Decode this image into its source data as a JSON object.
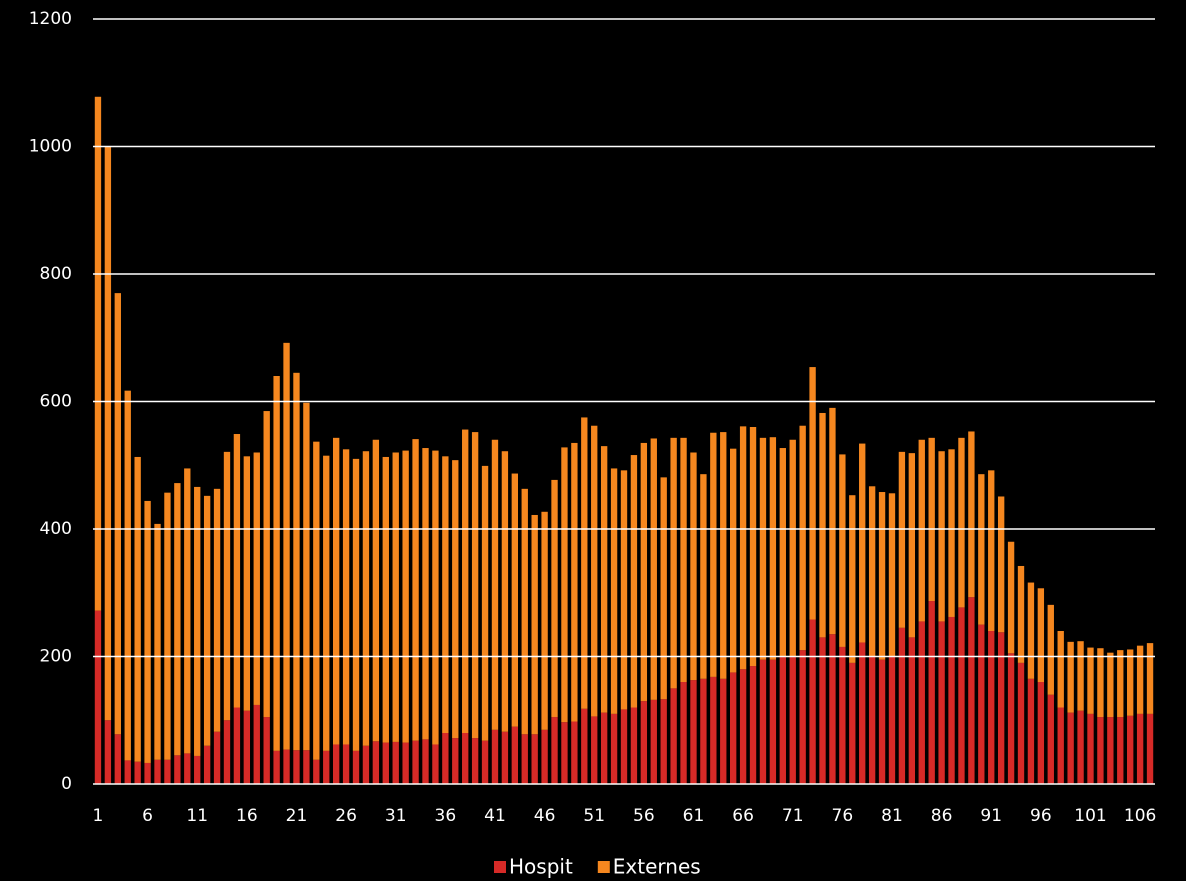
{
  "chart_data": {
    "type": "stacked-bar",
    "categories": [
      "1",
      null,
      null,
      null,
      null,
      "6",
      null,
      null,
      null,
      null,
      "11",
      null,
      null,
      null,
      null,
      "16",
      null,
      null,
      null,
      null,
      "21",
      null,
      null,
      null,
      null,
      "26",
      null,
      null,
      null,
      null,
      "31",
      null,
      null,
      null,
      null,
      "36",
      null,
      null,
      null,
      null,
      "41",
      null,
      null,
      null,
      null,
      "46",
      null,
      null,
      null,
      null,
      "51",
      null,
      null,
      null,
      null,
      "56",
      null,
      null,
      null,
      null,
      "61",
      null,
      null,
      null,
      null,
      "66",
      null,
      null,
      null,
      null,
      "71",
      null,
      null,
      null,
      null,
      "76",
      null,
      null,
      null,
      null,
      "81",
      null,
      null,
      null,
      null,
      "86",
      null,
      null,
      null,
      null,
      "91",
      null,
      null,
      null,
      null,
      "96",
      null,
      null,
      null,
      null,
      "101",
      null,
      null,
      null,
      null,
      "106",
      null
    ],
    "series": [
      {
        "name": "Hospit",
        "color": "#d62a27",
        "values": [
          272,
          100,
          78,
          37,
          35,
          33,
          38,
          38,
          45,
          48,
          44,
          60,
          82,
          100,
          120,
          115,
          124,
          105,
          52,
          54,
          53,
          53,
          38,
          52,
          62,
          62,
          52,
          60,
          67,
          65,
          66,
          65,
          68,
          70,
          62,
          80,
          72,
          80,
          72,
          68,
          85,
          82,
          90,
          78,
          78,
          85,
          105,
          97,
          98,
          118,
          106,
          112,
          110,
          117,
          120,
          130,
          132,
          133,
          150,
          160,
          163,
          165,
          168,
          165,
          175,
          180,
          185,
          195,
          195,
          200,
          200,
          210,
          258,
          230,
          235,
          215,
          190,
          222,
          200,
          195,
          200,
          245,
          230,
          255,
          287,
          255,
          262,
          277,
          293,
          250,
          240,
          238,
          205,
          190,
          165,
          160,
          140,
          120,
          112,
          115,
          110,
          105,
          105,
          105,
          107,
          110,
          110
        ]
      },
      {
        "name": "Externes",
        "color": "#f5871f",
        "values": [
          806,
          900,
          692,
          580,
          478,
          411,
          370,
          419,
          427,
          447,
          422,
          392,
          381,
          421,
          429,
          399,
          396,
          480,
          588,
          638,
          592,
          545,
          499,
          463,
          481,
          463,
          458,
          462,
          473,
          448,
          454,
          458,
          473,
          457,
          461,
          434,
          436,
          476,
          480,
          431,
          455,
          440,
          397,
          385,
          344,
          342,
          372,
          431,
          437,
          457,
          456,
          418,
          385,
          375,
          396,
          405,
          410,
          348,
          393,
          383,
          357,
          321,
          383,
          387,
          351,
          381,
          375,
          348,
          349,
          327,
          340,
          352,
          396,
          352,
          355,
          302,
          263,
          312,
          267,
          263,
          256,
          276,
          289,
          285,
          256,
          267,
          263,
          266,
          260,
          236,
          252,
          213,
          175,
          152,
          151,
          147,
          141,
          120,
          111,
          109,
          104,
          108,
          101,
          105,
          104,
          107,
          111
        ]
      }
    ],
    "ylim": [
      0,
      1200
    ],
    "yticks": [
      0,
      200,
      400,
      600,
      800,
      1000,
      1200
    ],
    "grid": true,
    "legend": "bottom"
  }
}
